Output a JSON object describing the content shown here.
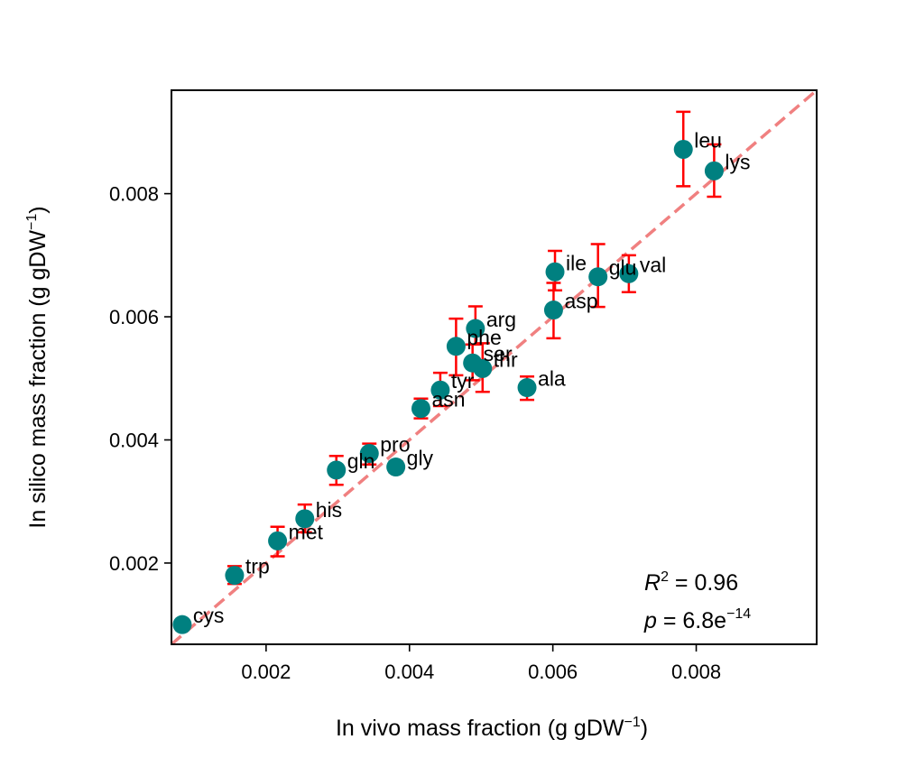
{
  "chart_data": {
    "type": "scatter",
    "xlabel": "In vivo mass fraction (g gDW",
    "xlabel_sup": "−1",
    "xlabel_end": ")",
    "ylabel": "In silico mass fraction (g gDW",
    "ylabel_sup": "−1",
    "ylabel_end": ")",
    "xlim": [
      0.00068,
      0.00968
    ],
    "ylim": [
      0.00068,
      0.00968
    ],
    "xticks": [
      0.002,
      0.004,
      0.006,
      0.008
    ],
    "yticks": [
      0.002,
      0.004,
      0.006,
      0.008
    ],
    "xtick_labels": [
      "0.002",
      "0.004",
      "0.006",
      "0.008"
    ],
    "ytick_labels": [
      "0.002",
      "0.004",
      "0.006",
      "0.008"
    ],
    "identity_line": true,
    "colors": {
      "points": "#008080",
      "errorbars": "#ff0000",
      "identity_line": "#f08080"
    },
    "stats": {
      "r2_label": "R",
      "r2_sup": "2",
      "r2_value": " = 0.96",
      "p_label": "p",
      "p_value": " = 6.8e",
      "p_sup": "−14"
    },
    "points": [
      {
        "label": "leu",
        "x": 0.00782,
        "y": 0.00872,
        "yerr": [
          0.00812,
          0.00933
        ]
      },
      {
        "label": "lys",
        "x": 0.00825,
        "y": 0.00837,
        "yerr": [
          0.00795,
          0.0088
        ]
      },
      {
        "label": "ile",
        "x": 0.00603,
        "y": 0.00673,
        "yerr": [
          0.00643,
          0.00707
        ]
      },
      {
        "label": "glu",
        "x": 0.00663,
        "y": 0.00665,
        "yerr": [
          0.00616,
          0.00718
        ]
      },
      {
        "label": "val",
        "x": 0.00706,
        "y": 0.0067,
        "yerr": [
          0.0064,
          0.007
        ]
      },
      {
        "label": "asp",
        "x": 0.00601,
        "y": 0.00611,
        "yerr": [
          0.00565,
          0.00655
        ]
      },
      {
        "label": "arg",
        "x": 0.00492,
        "y": 0.00581,
        "yerr": [
          0.00555,
          0.00617
        ]
      },
      {
        "label": "phe",
        "x": 0.00465,
        "y": 0.00552,
        "yerr": [
          0.00505,
          0.00597
        ]
      },
      {
        "label": "ser",
        "x": 0.00488,
        "y": 0.00525,
        "yerr": [
          0.00497,
          0.00555
        ]
      },
      {
        "label": "thr",
        "x": 0.00502,
        "y": 0.00516,
        "yerr": [
          0.00478,
          0.00557
        ]
      },
      {
        "label": "tyr",
        "x": 0.00443,
        "y": 0.00481,
        "yerr": [
          0.00455,
          0.00509
        ]
      },
      {
        "label": "ala",
        "x": 0.00564,
        "y": 0.00485,
        "yerr": [
          0.00465,
          0.00503
        ]
      },
      {
        "label": "asn",
        "x": 0.00416,
        "y": 0.00451,
        "yerr": [
          0.00435,
          0.00467
        ]
      },
      {
        "label": "pro",
        "x": 0.00344,
        "y": 0.00378,
        "yerr": [
          0.0036,
          0.00394
        ]
      },
      {
        "label": "gly",
        "x": 0.00381,
        "y": 0.00356,
        "yerr": [
          0.00347,
          0.00365
        ]
      },
      {
        "label": "gln",
        "x": 0.00298,
        "y": 0.00351,
        "yerr": [
          0.00327,
          0.00374
        ]
      },
      {
        "label": "his",
        "x": 0.00254,
        "y": 0.00272,
        "yerr": [
          0.0025,
          0.00295
        ]
      },
      {
        "label": "met",
        "x": 0.00216,
        "y": 0.00236,
        "yerr": [
          0.00211,
          0.00259
        ]
      },
      {
        "label": "trp",
        "x": 0.00156,
        "y": 0.0018,
        "yerr": [
          0.00166,
          0.00195
        ]
      },
      {
        "label": "cys",
        "x": 0.00083,
        "y": 0.001,
        "yerr": [
          0.00095,
          0.00105
        ]
      }
    ]
  }
}
